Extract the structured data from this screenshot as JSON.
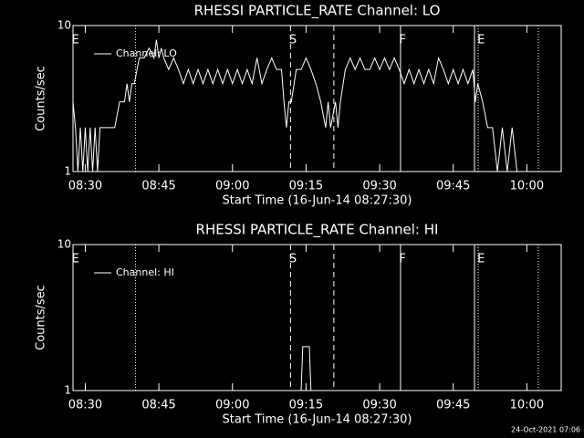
{
  "chart_data": [
    {
      "type": "line",
      "title": "RHESSI PARTICLE_RATE Channel: LO",
      "xlabel": "Start Time (16-Jun-14 08:27:30)",
      "ylabel": "Counts/sec",
      "ylog": true,
      "ylim": [
        1,
        10
      ],
      "yticks": [
        1,
        10
      ],
      "xlim": [
        "08:27:30",
        "10:07:00"
      ],
      "xticks": [
        "08:30",
        "08:45",
        "09:00",
        "09:15",
        "09:30",
        "09:45",
        "10:00"
      ],
      "legend": "upper left",
      "vlines": [
        {
          "x": "08:40:15",
          "style": "dotted"
        },
        {
          "x": "09:11:50",
          "style": "dashed"
        },
        {
          "x": "09:20:40",
          "style": "dashed"
        },
        {
          "x": "09:34:15",
          "style": "solid"
        },
        {
          "x": "09:49:20",
          "style": "solid"
        },
        {
          "x": "09:50:05",
          "style": "dotted"
        },
        {
          "x": "10:02:20",
          "style": "dotted"
        }
      ],
      "flags": [
        {
          "label": "E",
          "x": "08:28:00"
        },
        {
          "label": "S",
          "x": "09:12:20"
        },
        {
          "label": "F",
          "x": "09:34:40"
        },
        {
          "label": "E",
          "x": "09:50:40"
        }
      ],
      "series": [
        {
          "name": "Channel: LO",
          "color": "#ffffff",
          "x": [
            "08:27:30",
            "08:28:00",
            "08:28:30",
            "08:29:00",
            "08:29:30",
            "08:30:00",
            "08:30:30",
            "08:31:00",
            "08:31:30",
            "08:32:00",
            "08:32:30",
            "08:33:00",
            "08:34:00",
            "08:35:00",
            "08:36:00",
            "08:37:00",
            "08:38:00",
            "08:38:30",
            "08:39:00",
            "08:39:30",
            "08:40:00",
            "08:41:00",
            "08:42:00",
            "08:43:00",
            "08:44:00",
            "08:44:30",
            "08:45:00",
            "08:45:30",
            "08:46:00",
            "08:47:00",
            "08:48:00",
            "08:49:00",
            "08:50:00",
            "08:51:00",
            "08:52:00",
            "08:53:00",
            "08:54:00",
            "08:55:00",
            "08:56:00",
            "08:57:00",
            "08:58:00",
            "08:59:00",
            "09:00:00",
            "09:01:00",
            "09:02:00",
            "09:03:00",
            "09:04:00",
            "09:05:00",
            "09:06:00",
            "09:07:00",
            "09:08:00",
            "09:09:00",
            "09:10:00",
            "09:10:30",
            "09:11:00",
            "09:11:30",
            "09:12:00",
            "09:13:00",
            "09:14:00",
            "09:15:00",
            "09:16:00",
            "09:17:00",
            "09:18:00",
            "09:19:00",
            "09:19:30",
            "09:20:00",
            "09:21:00",
            "09:21:30",
            "09:22:00",
            "09:23:00",
            "09:24:00",
            "09:25:00",
            "09:26:00",
            "09:27:00",
            "09:28:00",
            "09:29:00",
            "09:30:00",
            "09:31:00",
            "09:32:00",
            "09:33:00",
            "09:34:00",
            "09:35:00",
            "09:36:00",
            "09:37:00",
            "09:38:00",
            "09:39:00",
            "09:40:00",
            "09:41:00",
            "09:42:00",
            "09:43:00",
            "09:44:00",
            "09:45:00",
            "09:46:00",
            "09:47:00",
            "09:48:00",
            "09:49:00",
            "09:49:30",
            "09:50:00",
            "09:51:00",
            "09:52:00",
            "09:53:00",
            "09:54:00",
            "09:55:00",
            "09:56:00",
            "09:57:00",
            "09:58:00"
          ],
          "values": [
            3,
            2,
            1,
            2,
            1,
            2,
            1,
            2,
            1,
            2,
            1,
            2,
            2,
            2,
            2,
            3,
            3,
            4,
            3,
            4,
            4,
            6,
            6,
            7,
            6,
            8,
            6,
            7,
            6,
            5,
            6,
            5,
            4,
            5,
            4,
            5,
            4,
            5,
            4,
            5,
            4,
            5,
            4,
            5,
            4,
            5,
            4,
            6,
            4,
            5,
            6,
            5,
            5,
            3,
            2,
            3,
            3,
            5,
            5,
            6,
            5,
            4,
            3,
            2,
            3,
            2,
            3,
            2,
            3,
            5,
            6,
            5,
            6,
            5,
            5,
            6,
            5,
            6,
            5,
            6,
            5,
            4,
            5,
            4,
            5,
            4,
            5,
            4,
            6,
            5,
            4,
            5,
            4,
            5,
            4,
            5,
            3,
            4,
            3,
            2,
            2,
            1,
            2,
            1,
            2,
            1
          ]
        }
      ]
    },
    {
      "type": "line",
      "title": "RHESSI PARTICLE_RATE Channel: HI",
      "xlabel": "Start Time (16-Jun-14 08:27:30)",
      "ylabel": "Counts/sec",
      "ylog": true,
      "ylim": [
        1,
        10
      ],
      "yticks": [
        1,
        10
      ],
      "xlim": [
        "08:27:30",
        "10:07:00"
      ],
      "xticks": [
        "08:30",
        "08:45",
        "09:00",
        "09:15",
        "09:30",
        "09:45",
        "10:00"
      ],
      "legend": "upper left",
      "vlines": [
        {
          "x": "08:40:15",
          "style": "dotted"
        },
        {
          "x": "09:11:50",
          "style": "dashed"
        },
        {
          "x": "09:20:40",
          "style": "dashed"
        },
        {
          "x": "09:34:15",
          "style": "solid"
        },
        {
          "x": "09:49:20",
          "style": "solid"
        },
        {
          "x": "09:50:05",
          "style": "dotted"
        },
        {
          "x": "10:02:20",
          "style": "dotted"
        }
      ],
      "flags": [
        {
          "label": "E",
          "x": "08:28:00"
        },
        {
          "label": "S",
          "x": "09:12:20"
        },
        {
          "label": "F",
          "x": "09:34:40"
        },
        {
          "label": "E",
          "x": "09:50:40"
        }
      ],
      "series": [
        {
          "name": "Channel: HI",
          "color": "#ffffff",
          "x": [
            "08:27:30",
            "09:14:00",
            "09:14:20",
            "09:15:40",
            "09:16:00",
            "09:58:00"
          ],
          "values": [
            1,
            1,
            2,
            2,
            1,
            1
          ]
        }
      ]
    }
  ],
  "footer": "24-Oct-2021 07:06"
}
